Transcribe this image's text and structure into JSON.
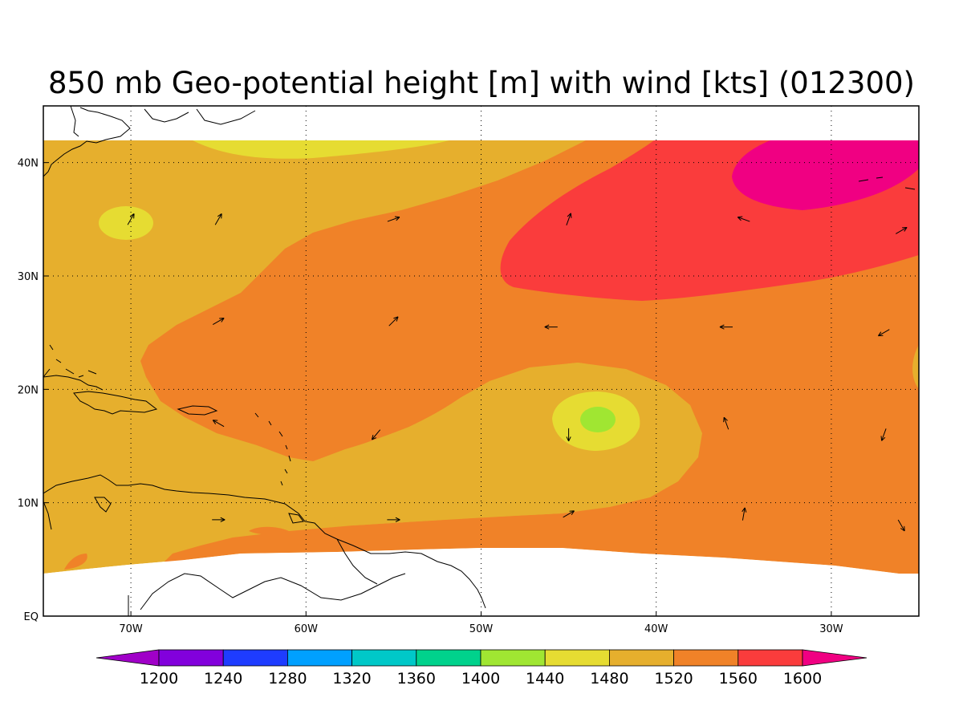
{
  "title": "850 mb Geo-potential height [m] with wind [kts] (012300)",
  "map": {
    "region": "Tropical North Atlantic / Caribbean",
    "lon_range": [
      -75,
      -25
    ],
    "lat_range": [
      0,
      45
    ],
    "data_lat_range_top": 42,
    "x_ticks": [
      {
        "lon": -70,
        "label": "70W"
      },
      {
        "lon": -60,
        "label": "60W"
      },
      {
        "lon": -50,
        "label": "50W"
      },
      {
        "lon": -40,
        "label": "40W"
      },
      {
        "lon": -30,
        "label": "30W"
      }
    ],
    "y_ticks": [
      {
        "lat": 0,
        "label": "EQ"
      },
      {
        "lat": 10,
        "label": "10N"
      },
      {
        "lat": 20,
        "label": "20N"
      },
      {
        "lat": 30,
        "label": "30N"
      },
      {
        "lat": 40,
        "label": "40N"
      }
    ],
    "grid": "dotted",
    "fill_colors": {
      "1440-1480": "#a0e632",
      "1480-1520": "#e6dc32",
      "1520-1560": "#e6af2d",
      "1560-1600": "#f08228",
      "1600-1640": "#fa3c3c",
      "1640+": "#f00082"
    },
    "coastline_color": "#000000"
  },
  "colorbar": {
    "levels": [
      "1200",
      "1240",
      "1280",
      "1320",
      "1360",
      "1400",
      "1440",
      "1480",
      "1520",
      "1560",
      "1600"
    ],
    "colors": [
      "#a000c8",
      "#8200dc",
      "#1e3cff",
      "#00a0ff",
      "#00c8c8",
      "#00d28c",
      "#a0e632",
      "#e6dc32",
      "#e6af2d",
      "#f08228",
      "#fa3c3c",
      "#f00082"
    ]
  },
  "wind_vectors": [
    {
      "lon": -70.0,
      "lat": 35.0,
      "dir_deg": 60
    },
    {
      "lon": -65.0,
      "lat": 35.0,
      "dir_deg": 60
    },
    {
      "lon": -55.0,
      "lat": 35.0,
      "dir_deg": 20
    },
    {
      "lon": -45.0,
      "lat": 35.0,
      "dir_deg": 70
    },
    {
      "lon": -35.0,
      "lat": 35.0,
      "dir_deg": 160
    },
    {
      "lon": -26.0,
      "lat": 34.0,
      "dir_deg": 30
    },
    {
      "lon": -65.0,
      "lat": 26.0,
      "dir_deg": 30
    },
    {
      "lon": -55.0,
      "lat": 26.0,
      "dir_deg": 45
    },
    {
      "lon": -46.0,
      "lat": 25.5,
      "dir_deg": 180
    },
    {
      "lon": -36.0,
      "lat": 25.5,
      "dir_deg": 180
    },
    {
      "lon": -27.0,
      "lat": 25.0,
      "dir_deg": 210
    },
    {
      "lon": -65.0,
      "lat": 17.0,
      "dir_deg": 150
    },
    {
      "lon": -56.0,
      "lat": 16.0,
      "dir_deg": 230
    },
    {
      "lon": -45.0,
      "lat": 16.0,
      "dir_deg": 270
    },
    {
      "lon": -36.0,
      "lat": 17.0,
      "dir_deg": 110
    },
    {
      "lon": -27.0,
      "lat": 16.0,
      "dir_deg": 250
    },
    {
      "lon": -65.0,
      "lat": 8.5,
      "dir_deg": 0
    },
    {
      "lon": -55.0,
      "lat": 8.5,
      "dir_deg": 0
    },
    {
      "lon": -45.0,
      "lat": 9.0,
      "dir_deg": 30
    },
    {
      "lon": -35.0,
      "lat": 9.0,
      "dir_deg": 80
    },
    {
      "lon": -26.0,
      "lat": 8.0,
      "dir_deg": 300
    }
  ]
}
